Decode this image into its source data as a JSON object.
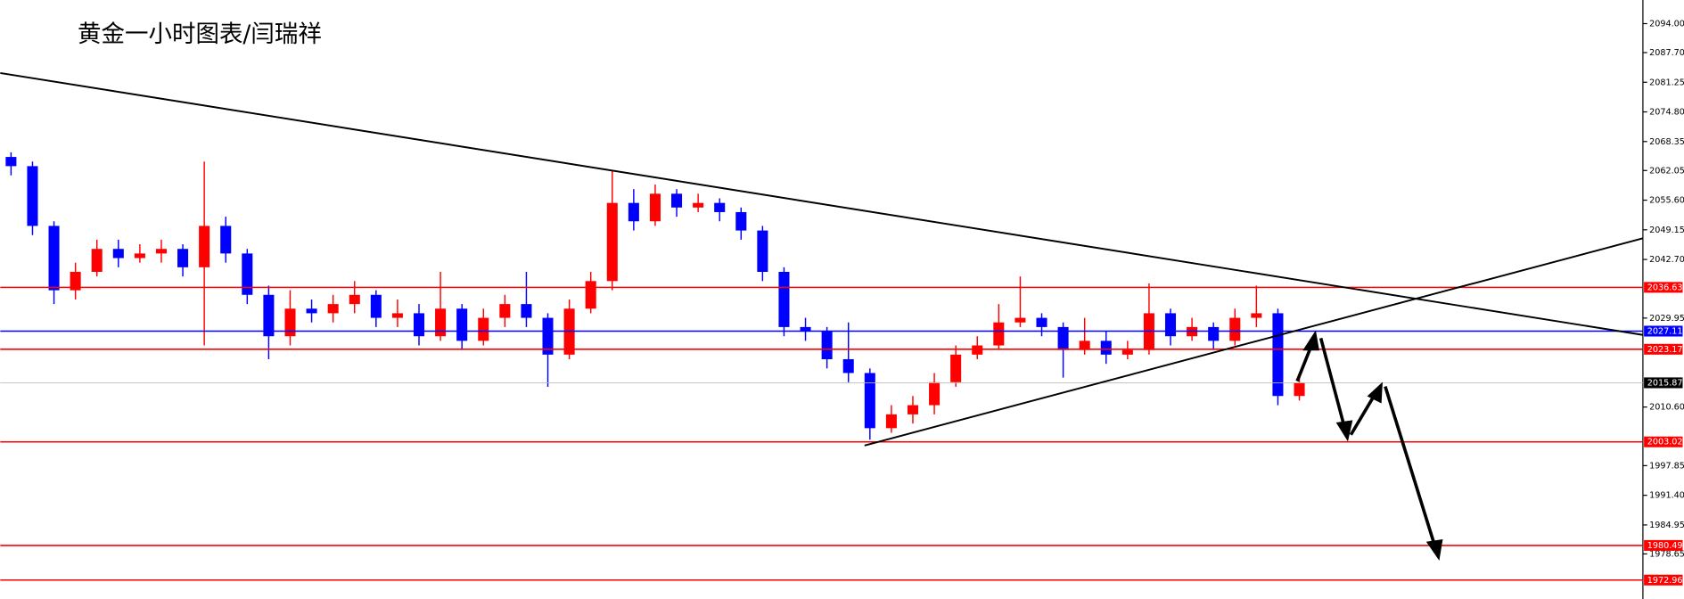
{
  "chart_data": {
    "type": "candlestick",
    "title": "黄金一小时图表/闫瑞祥",
    "up_color": "#ff0000",
    "down_color": "#0000ff",
    "ylim": [
      1968.84,
      2099.14
    ],
    "yticks": [
      {
        "value": 2094.0,
        "label": "2094.00"
      },
      {
        "value": 2087.7,
        "label": "2087.70"
      },
      {
        "value": 2081.25,
        "label": "2081.25"
      },
      {
        "value": 2074.8,
        "label": "2074.80"
      },
      {
        "value": 2068.35,
        "label": "2068.35"
      },
      {
        "value": 2062.05,
        "label": "2062.05"
      },
      {
        "value": 2055.6,
        "label": "2055.60"
      },
      {
        "value": 2049.15,
        "label": "2049.15"
      },
      {
        "value": 2042.7,
        "label": "2042.70"
      },
      {
        "value": 2029.95,
        "label": "2029.95"
      },
      {
        "value": 2010.6,
        "label": "2010.60"
      },
      {
        "value": 1997.85,
        "label": "1997.85"
      },
      {
        "value": 1991.4,
        "label": "1991.40"
      },
      {
        "value": 1984.95,
        "label": "1984.95"
      },
      {
        "value": 1978.65,
        "label": "1978.65"
      }
    ],
    "levels": [
      {
        "value": 2036.63,
        "color": "#ff0000"
      },
      {
        "value": 2027.11,
        "color": "#0000ff"
      },
      {
        "value": 2023.17,
        "color": "#ff0000"
      },
      {
        "value": 2015.87,
        "color": "#000000"
      },
      {
        "value": 2003.02,
        "color": "#ff0000"
      },
      {
        "value": 1980.49,
        "color": "#ff0000"
      },
      {
        "value": 1972.96,
        "color": "#ff0000"
      }
    ],
    "open": [
      2065,
      2063,
      2050,
      2036,
      2040,
      2045,
      2043,
      2044,
      2045,
      2041,
      2050,
      2044,
      2035,
      2026,
      2032,
      2031,
      2033,
      2035,
      2030,
      2031,
      2026,
      2032,
      2025,
      2030,
      2033,
      2030,
      2022,
      2032,
      2038,
      2055,
      2051,
      2057,
      2054,
      2055,
      2053,
      2049,
      2040,
      2028,
      2027,
      2021,
      2018,
      2006,
      2009,
      2011,
      2016,
      2022,
      2024,
      2029,
      2030,
      2028,
      2023,
      2025,
      2022,
      2023,
      2031,
      2026,
      2028,
      2025,
      2030,
      2031,
      2013
    ],
    "high": [
      2066,
      2064,
      2051,
      2042,
      2047,
      2047,
      2046,
      2047,
      2046,
      2064,
      2052,
      2045,
      2037,
      2036,
      2034,
      2035,
      2038,
      2036,
      2034,
      2033,
      2040,
      2033,
      2032,
      2035,
      2040,
      2031,
      2034,
      2040,
      2062,
      2058,
      2059,
      2058,
      2057,
      2056,
      2054,
      2050,
      2041,
      2030,
      2028,
      2029,
      2019,
      2011,
      2013,
      2018,
      2024,
      2026,
      2033,
      2039,
      2031,
      2029,
      2030,
      2027,
      2025,
      2037.5,
      2032,
      2030,
      2029,
      2032,
      2037,
      2032,
      2017
    ],
    "low": [
      2061,
      2048,
      2033,
      2034,
      2039,
      2041,
      2042,
      2042,
      2039,
      2024,
      2042,
      2033,
      2021,
      2024,
      2029,
      2029,
      2031,
      2028,
      2028,
      2024,
      2025,
      2023,
      2024,
      2028,
      2028,
      2015,
      2021,
      2031,
      2036,
      2049,
      2050,
      2052,
      2053,
      2051,
      2047,
      2038,
      2026,
      2025,
      2019,
      2016,
      2003.5,
      2005,
      2007,
      2009,
      2015,
      2021,
      2023,
      2028,
      2026,
      2017,
      2022,
      2020,
      2021,
      2022,
      2024,
      2025,
      2023,
      2024,
      2028,
      2011,
      2012
    ],
    "close": [
      2063,
      2050,
      2036,
      2040,
      2045,
      2043,
      2044,
      2045,
      2041,
      2050,
      2044,
      2035,
      2026,
      2032,
      2031,
      2033,
      2035,
      2030,
      2031,
      2026,
      2032,
      2025,
      2030,
      2033,
      2030,
      2022,
      2032,
      2038,
      2055,
      2051,
      2057,
      2054,
      2055,
      2053,
      2049,
      2040,
      2028,
      2027,
      2021,
      2018,
      2006,
      2009,
      2011,
      2016,
      2022,
      2024,
      2029,
      2030,
      2028,
      2023,
      2025,
      2022,
      2023,
      2031,
      2026,
      2028,
      2025,
      2030,
      2031,
      2013,
      2015.87
    ]
  }
}
